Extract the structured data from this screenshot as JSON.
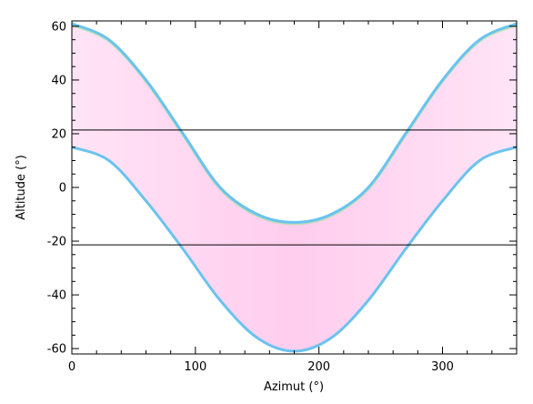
{
  "chart_data": {
    "type": "area",
    "title": "",
    "xlabel": "Azimut (°)",
    "ylabel": "Altitude (°)",
    "xlim": [
      0,
      360
    ],
    "ylim": [
      -62,
      62
    ],
    "x_ticks": [
      0,
      100,
      200,
      300
    ],
    "x_minor_step": 20,
    "y_ticks": [
      -60,
      -40,
      -20,
      0,
      20,
      40,
      60
    ],
    "y_minor_step": 5,
    "grid": false,
    "band": {
      "x": [
        0,
        30,
        60,
        90,
        120,
        150,
        180,
        210,
        240,
        270,
        300,
        330,
        360
      ],
      "upper": [
        61,
        55,
        40,
        20,
        0,
        -10,
        -13,
        -10,
        0,
        20,
        40,
        55,
        61
      ],
      "lower": [
        15,
        10,
        -5,
        -23,
        -42,
        -56,
        -61,
        -56,
        -42,
        -23,
        -5,
        10,
        15
      ]
    },
    "horizontal_lines": [
      21.4,
      -21.4
    ],
    "colors": {
      "band_fill": "#ffd9f3",
      "band_edge": "#6ac3ee",
      "band_edge_secondary": "#8ce88a",
      "band_low_accent": "#ff8a8a",
      "line": "#000000",
      "axis": "#000000"
    }
  }
}
